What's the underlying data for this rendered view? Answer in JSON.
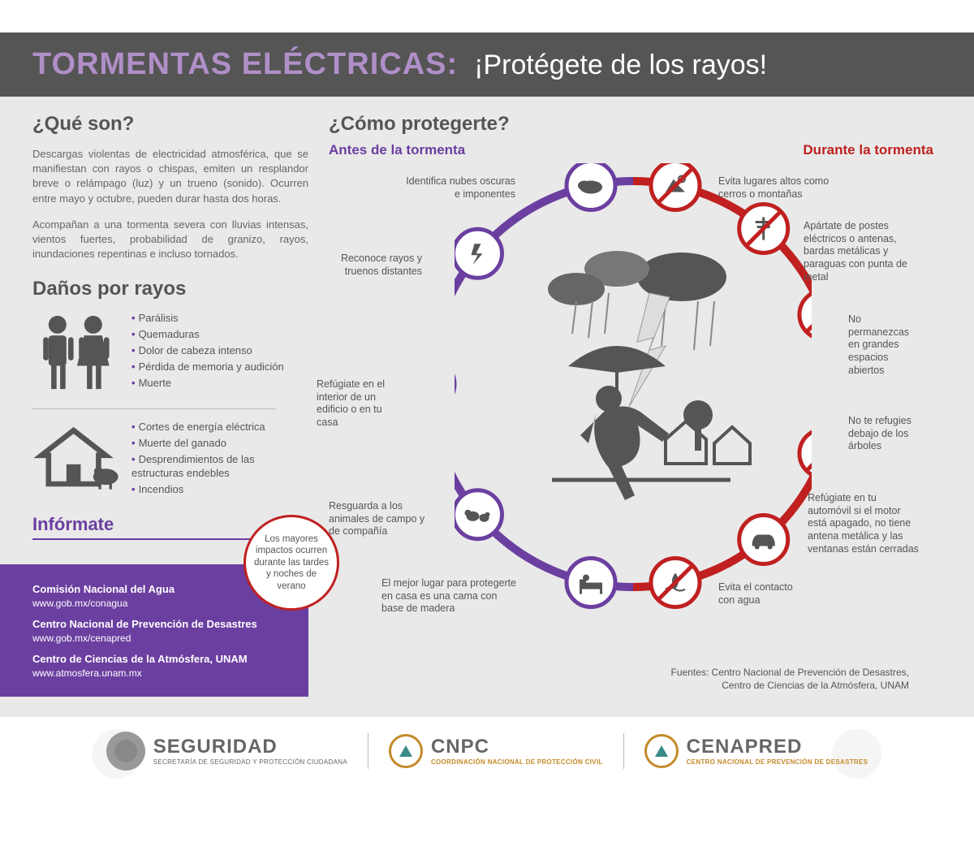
{
  "colors": {
    "header_bg": "#555555",
    "title": "#b08fc8",
    "subtitle": "#ffffff",
    "page_bg": "#e9e9e9",
    "text": "#555555",
    "purple": "#6b3fa0",
    "red": "#c02020",
    "icon_fill": "#555555",
    "footer_accent": "#c58a2a"
  },
  "header": {
    "title": "TORMENTAS ELÉCTRICAS:",
    "subtitle": "¡Protégete de los rayos!"
  },
  "what": {
    "heading": "¿Qué son?",
    "p1": "Descargas violentas de electricidad atmosférica, que se manifiestan con rayos o chispas, emiten un resplandor breve o relámpago (luz) y un trueno (sonido). Ocurren entre mayo y octubre, pueden durar hasta dos horas.",
    "p2": "Acompañan a una tormenta severa con lluvias intensas, vientos fuertes, probabilidad de granizo, rayos, inundaciones repentinas e incluso tornados."
  },
  "damage": {
    "heading": "Daños por rayos",
    "people": [
      "Parálisis",
      "Quemaduras",
      "Dolor de cabeza intenso",
      "Pérdida de memoria y audición",
      "Muerte"
    ],
    "property": [
      "Cortes de energía eléctrica",
      "Muerte del ganado",
      "Desprendimientos de las estructuras endebles",
      "Incendios"
    ]
  },
  "callout": "Los mayores impactos ocurren durante las tardes y noches de verano",
  "informate": {
    "heading": "Infórmate",
    "sources": [
      {
        "name": "Comisión Nacional del Agua",
        "url": "www.gob.mx/conagua"
      },
      {
        "name": "Centro Nacional de Prevención de Desastres",
        "url": "www.gob.mx/cenapred"
      },
      {
        "name": "Centro de Ciencias de la Atmósfera, UNAM",
        "url": "www.atmosfera.unam.mx"
      }
    ]
  },
  "protect": {
    "heading": "¿Cómo protegerte?",
    "before_label": "Antes de la tormenta",
    "during_label": "Durante la tormenta",
    "before": [
      {
        "label": "Identifica nubes oscuras e imponentes",
        "icon": "cloud"
      },
      {
        "label": "Reconoce rayos y truenos distantes",
        "icon": "bolt"
      },
      {
        "label": "Refúgiate en el interior de un edificio o en tu casa",
        "icon": "house"
      },
      {
        "label": "Resguarda a los animales de campo y de compañía",
        "icon": "animals"
      },
      {
        "label": "El mejor lugar para protegerte en casa es una cama con base de madera",
        "icon": "bed"
      }
    ],
    "during": [
      {
        "label": "Evita lugares altos como cerros o montañas",
        "icon": "no-mountain"
      },
      {
        "label": "Apártate de postes eléctricos o antenas, bardas metálicas y paraguas con punta de metal",
        "icon": "no-pole"
      },
      {
        "label": "No permanezcas en grandes espacios abiertos",
        "icon": "no-field"
      },
      {
        "label": "No te refugies debajo de los árboles",
        "icon": "no-tree"
      },
      {
        "label": "Refúgiate en tu automóvil si el motor está apagado, no tiene antena metálica y las ventanas están cerradas",
        "icon": "car"
      },
      {
        "label": "Evita el contacto con agua",
        "icon": "no-water"
      }
    ]
  },
  "fuente": {
    "line1": "Fuentes: Centro Nacional de Prevención de Desastres,",
    "line2": "Centro de Ciencias de la Atmósfera, UNAM"
  },
  "footer": {
    "seguridad": {
      "big": "SEGURIDAD",
      "small": "SECRETARÍA DE SEGURIDAD Y PROTECCIÓN CIUDADANA"
    },
    "cnpc": {
      "big": "CNPC",
      "small": "COORDINACIÓN NACIONAL DE PROTECCIÓN CIVIL"
    },
    "cenapred": {
      "big": "CENAPRED",
      "small": "CENTRO NACIONAL DE PREVENCIÓN DE DESASTRES"
    }
  }
}
